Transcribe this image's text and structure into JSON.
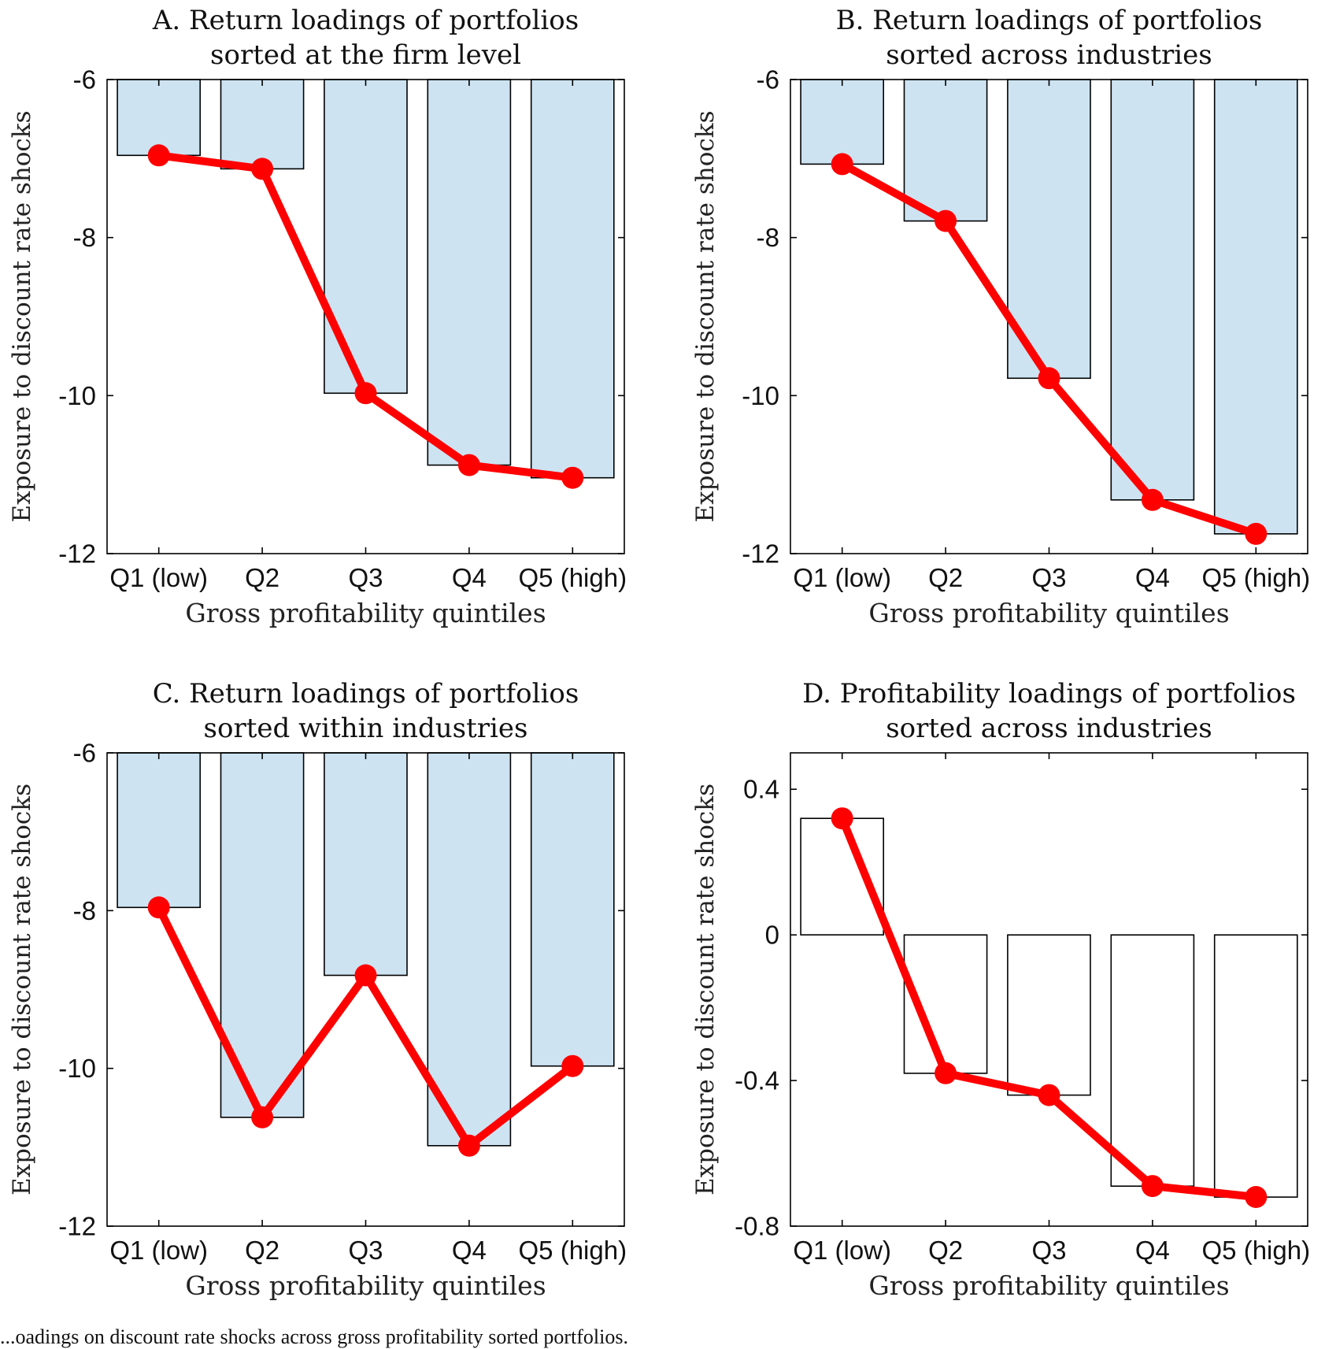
{
  "caption": "...oadings on discount rate shocks across gross profitability sorted portfolios.",
  "colors": {
    "bar_fill": "#cde3f2",
    "bar_fill_d": "#ffffff",
    "line": "#ff0000",
    "axis": "#000000"
  },
  "chart_data": [
    {
      "id": "A",
      "type": "bar",
      "title": [
        "A. Return loadings of portfolios",
        "sorted at the firm level"
      ],
      "xlabel": "Gross profitability quintiles",
      "ylabel": "Exposure to discount rate shocks",
      "categories": [
        "Q1 (low)",
        "Q2",
        "Q3",
        "Q4",
        "Q5 (high)"
      ],
      "values": [
        -6.96,
        -7.13,
        -9.97,
        -10.88,
        -11.04
      ],
      "overlay": "line-markers",
      "ylim": [
        -12,
        -6
      ],
      "yticks": [
        -6,
        -8,
        -10,
        -12
      ],
      "bar_fill": "light-blue"
    },
    {
      "id": "B",
      "type": "bar",
      "title": [
        "B. Return loadings of portfolios",
        "sorted across industries"
      ],
      "xlabel": "Gross profitability quintiles",
      "ylabel": "Exposure to discount rate shocks",
      "categories": [
        "Q1 (low)",
        "Q2",
        "Q3",
        "Q4",
        "Q5 (high)"
      ],
      "values": [
        -7.07,
        -7.79,
        -9.78,
        -11.32,
        -11.75
      ],
      "overlay": "line-markers",
      "ylim": [
        -12,
        -6
      ],
      "yticks": [
        -6,
        -8,
        -10,
        -12
      ],
      "bar_fill": "light-blue"
    },
    {
      "id": "C",
      "type": "bar",
      "title": [
        "C. Return loadings of portfolios",
        "sorted within industries"
      ],
      "xlabel": "Gross profitability quintiles",
      "ylabel": "Exposure to discount rate shocks",
      "categories": [
        "Q1 (low)",
        "Q2",
        "Q3",
        "Q4",
        "Q5 (high)"
      ],
      "values": [
        -7.96,
        -10.62,
        -8.82,
        -10.98,
        -9.97
      ],
      "overlay": "line-markers",
      "ylim": [
        -12,
        -6
      ],
      "yticks": [
        -6,
        -8,
        -10,
        -12
      ],
      "bar_fill": "light-blue"
    },
    {
      "id": "D",
      "type": "bar",
      "title": [
        "D. Profitability loadings of portfolios",
        "sorted across industries"
      ],
      "xlabel": "Gross profitability quintiles",
      "ylabel": "Exposure to discount rate shocks",
      "categories": [
        "Q1 (low)",
        "Q2",
        "Q3",
        "Q4",
        "Q5 (high)"
      ],
      "values": [
        0.32,
        -0.38,
        -0.44,
        -0.69,
        -0.72
      ],
      "overlay": "line-markers",
      "ylim": [
        -0.8,
        0.5
      ],
      "yticks": [
        0.4,
        0,
        -0.4,
        -0.8
      ],
      "bar_fill": "white"
    }
  ]
}
